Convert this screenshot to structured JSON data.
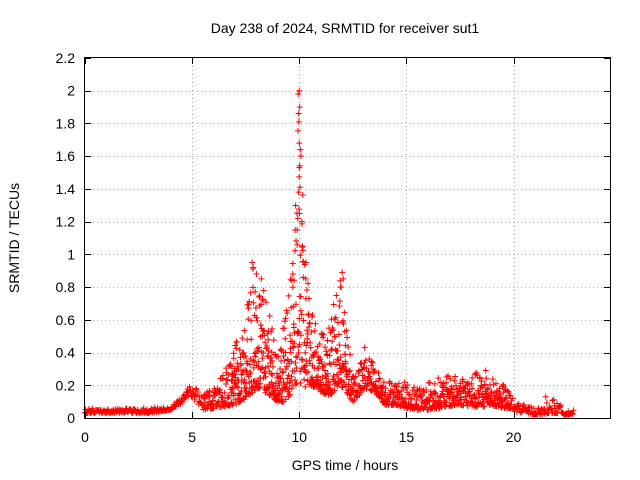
{
  "chart_data": {
    "type": "scatter",
    "title": "Day 238 of 2024, SRMTID for receiver sut1",
    "xlabel": "GPS time / hours",
    "ylabel": "SRMTID / TECUs",
    "xlim": [
      0,
      24.5
    ],
    "ylim": [
      0,
      2.2
    ],
    "xticks": [
      0,
      5,
      10,
      15,
      20
    ],
    "xtick_labels": [
      "0",
      "5",
      "10",
      "15",
      "20"
    ],
    "yticks": [
      0,
      0.2,
      0.4,
      0.6,
      0.8,
      1,
      1.2,
      1.4,
      1.6,
      1.8,
      2,
      2.2
    ],
    "ytick_labels": [
      "0",
      "0.2",
      "0.4",
      "0.6",
      "0.8",
      "1",
      "1.2",
      "1.4",
      "1.6",
      "1.8",
      "2",
      "2.2"
    ],
    "grid": true,
    "marker": "+",
    "series_color": "#ff0000",
    "envelope": {
      "description": "approximate envelope of the dense scatter (hour, baseline, upper)",
      "x": [
        0.0,
        1.0,
        2.0,
        3.0,
        4.0,
        4.5,
        4.9,
        5.2,
        5.5,
        6.0,
        6.5,
        7.0,
        7.5,
        7.8,
        8.0,
        8.3,
        8.7,
        9.0,
        9.3,
        9.6,
        9.8,
        10.0,
        10.2,
        10.5,
        10.8,
        11.0,
        11.3,
        11.6,
        11.9,
        12.2,
        12.5,
        12.9,
        13.2,
        13.6,
        14.0,
        14.5,
        15.0,
        15.5,
        16.0,
        16.5,
        17.0,
        17.5,
        18.0,
        18.5,
        18.8,
        19.2,
        19.6,
        20.0,
        20.5,
        21.0,
        21.4,
        21.7,
        22.0,
        22.4,
        22.8
      ],
      "low": [
        0.03,
        0.03,
        0.03,
        0.03,
        0.05,
        0.09,
        0.14,
        0.1,
        0.05,
        0.06,
        0.07,
        0.08,
        0.12,
        0.15,
        0.18,
        0.16,
        0.13,
        0.1,
        0.1,
        0.15,
        0.2,
        0.22,
        0.18,
        0.2,
        0.18,
        0.16,
        0.14,
        0.15,
        0.2,
        0.15,
        0.1,
        0.15,
        0.18,
        0.15,
        0.08,
        0.08,
        0.06,
        0.05,
        0.05,
        0.06,
        0.07,
        0.08,
        0.07,
        0.06,
        0.08,
        0.07,
        0.06,
        0.04,
        0.03,
        0.02,
        0.02,
        0.03,
        0.03,
        0.02,
        0.02
      ],
      "high": [
        0.06,
        0.06,
        0.06,
        0.06,
        0.08,
        0.12,
        0.2,
        0.18,
        0.15,
        0.18,
        0.28,
        0.45,
        0.6,
        0.95,
        0.9,
        0.85,
        0.6,
        0.45,
        0.6,
        0.85,
        1.2,
        2.0,
        1.25,
        0.75,
        0.6,
        0.55,
        0.5,
        0.7,
        0.88,
        0.55,
        0.3,
        0.35,
        0.4,
        0.3,
        0.25,
        0.22,
        0.22,
        0.2,
        0.22,
        0.25,
        0.26,
        0.26,
        0.28,
        0.28,
        0.28,
        0.22,
        0.2,
        0.12,
        0.08,
        0.07,
        0.06,
        0.13,
        0.1,
        0.06,
        0.05
      ]
    },
    "highlight_points": [
      {
        "x": 10.0,
        "y": 2.0
      },
      {
        "x": 9.95,
        "y": 1.98
      },
      {
        "x": 10.02,
        "y": 1.9
      },
      {
        "x": 9.98,
        "y": 1.81
      },
      {
        "x": 10.0,
        "y": 1.68
      },
      {
        "x": 10.05,
        "y": 1.64
      },
      {
        "x": 10.08,
        "y": 1.6
      },
      {
        "x": 10.0,
        "y": 1.53
      },
      {
        "x": 10.03,
        "y": 1.41
      },
      {
        "x": 9.97,
        "y": 1.38
      },
      {
        "x": 10.01,
        "y": 1.25
      },
      {
        "x": 9.93,
        "y": 1.22
      },
      {
        "x": 10.12,
        "y": 1.2
      },
      {
        "x": 9.9,
        "y": 1.15
      },
      {
        "x": 10.15,
        "y": 1.05
      },
      {
        "x": 7.8,
        "y": 0.95
      },
      {
        "x": 7.85,
        "y": 0.92
      },
      {
        "x": 8.0,
        "y": 0.88
      },
      {
        "x": 12.0,
        "y": 0.89
      },
      {
        "x": 12.05,
        "y": 0.85
      },
      {
        "x": 11.95,
        "y": 0.8
      },
      {
        "x": 9.65,
        "y": 0.84
      },
      {
        "x": 9.7,
        "y": 0.8
      },
      {
        "x": 10.3,
        "y": 0.85
      },
      {
        "x": 13.05,
        "y": 0.43
      },
      {
        "x": 18.7,
        "y": 0.29
      },
      {
        "x": 21.5,
        "y": 0.13
      }
    ]
  }
}
